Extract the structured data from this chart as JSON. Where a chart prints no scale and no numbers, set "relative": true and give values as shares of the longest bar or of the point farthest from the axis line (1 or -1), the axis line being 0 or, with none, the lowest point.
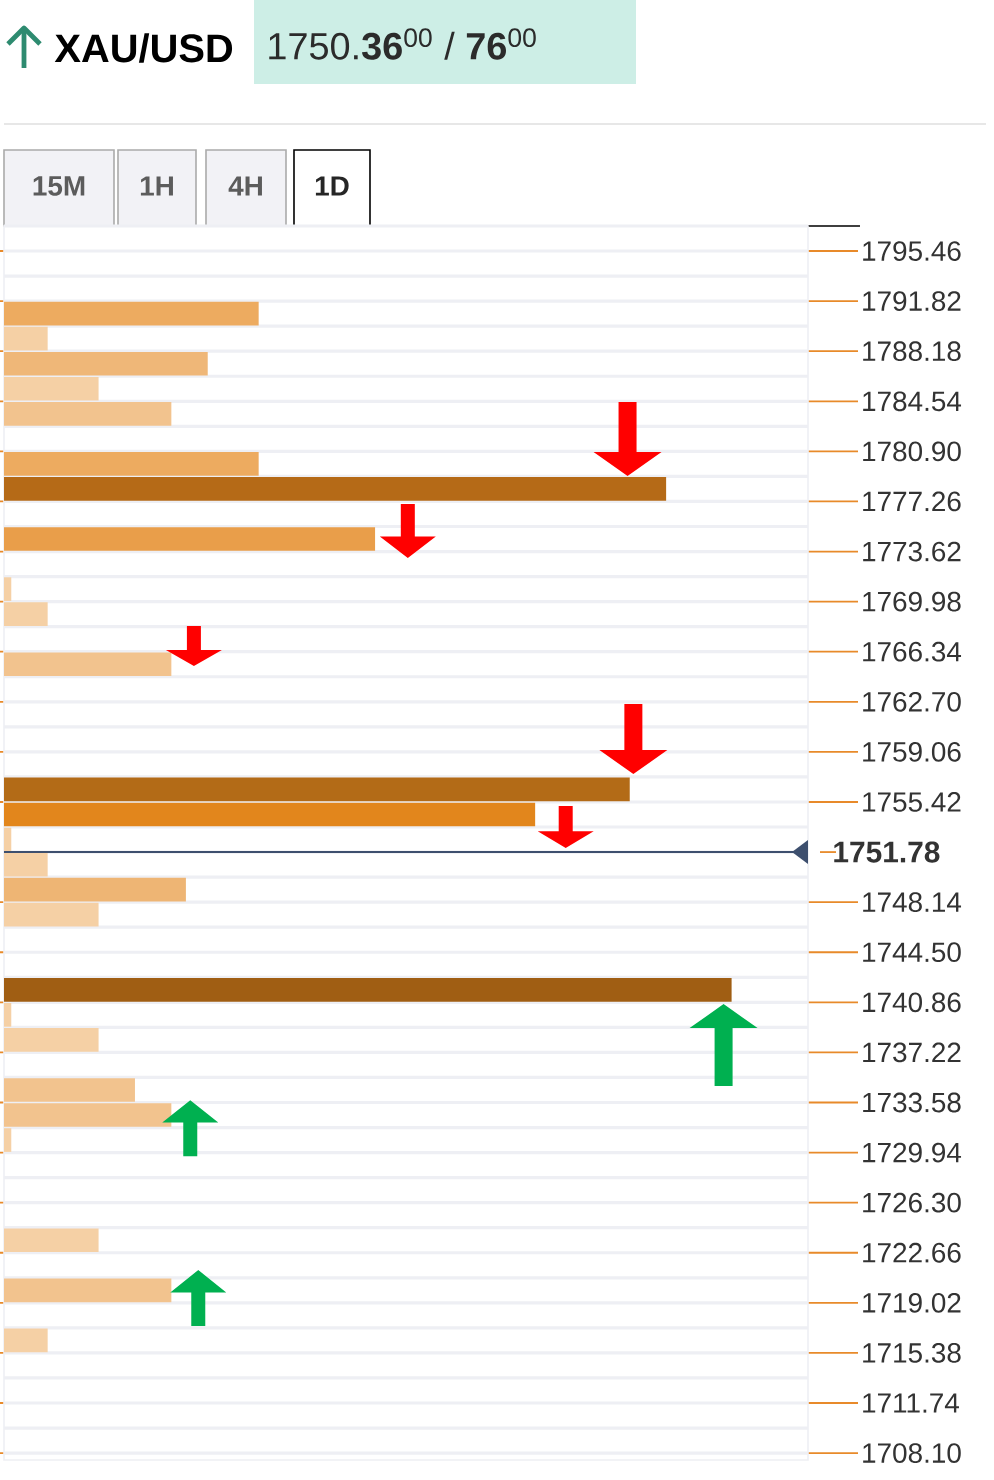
{
  "chart_data": {
    "type": "bar",
    "orientation": "horizontal",
    "relative": true,
    "title": "XAU/USD",
    "subtitle": "1750.**36**$^{00}$ / **76**$^{00}$",
    "annotations": [
      "15M",
      "1H",
      "4H",
      "1D"
    ],
    "x": [
      1790.91,
      1789.09,
      1787.27,
      1785.45,
      1783.63,
      1779.99,
      1778.17,
      1774.53,
      1770.89,
      1769.07,
      1765.43,
      1756.33,
      1754.51,
      1752.69,
      1750.87,
      1749.05,
      1747.23,
      1741.77,
      1739.95,
      1738.13,
      1734.49,
      1732.67,
      1730.85,
      1723.57,
      1719.93,
      1716.29
    ],
    "values": [
      0.35,
      0.06,
      0.28,
      0.13,
      0.23,
      0.35,
      0.91,
      0.51,
      0.01,
      0.06,
      0.23,
      0.86,
      0.73,
      0.01,
      0.06,
      0.25,
      0.13,
      1,
      0.01,
      0.13,
      0.18,
      0.23,
      0.01,
      0.13,
      0.23,
      0.06
    ],
    "colors": [
      "#edab60",
      "#f5d0a5",
      "#efb778",
      "#f5d0a5",
      "#f2c38e",
      "#edab60",
      "#b56a17",
      "#e99e4a",
      "#f5d0a5",
      "#f5d0a5",
      "#f2c38e",
      "#b36b17",
      "#e2861c",
      "#f5d0a5",
      "#f5d0a5",
      "#eeb574",
      "#f5d0a5",
      "#a05e13",
      "#f5d0a5",
      "#f5d0a5",
      "#f2c38e",
      "#f2c38e",
      "#f5d0a5",
      "#f5d0a5",
      "#f2c38e",
      "#f5d0a5"
    ],
    "ylim": [
      1707.6,
      1797.28
    ],
    "yticks": [
      1795.46,
      1791.82,
      1788.18,
      1784.54,
      {
        "value": 1780.9,
        "label": "1780.90"
      },
      1777.26,
      1773.62,
      1769.98,
      1766.34,
      {
        "value": 1762.7,
        "label": "1762.70"
      },
      1759.06,
      1755.42,
      1748.14,
      {
        "value": 1744.5,
        "label": "1744.50"
      },
      1740.86,
      1737.22,
      1733.58,
      1729.94,
      {
        "value": 1726.3,
        "label": "1726.30"
      },
      1722.66,
      1719.02,
      1715.38,
      1711.74,
      {
        "value": 1708.1,
        "label": "1708.10"
      }
    ],
    "ref_lines": [
      {
        "axis": "y",
        "value": 1751.78,
        "label": "1751.78",
        "color": "#3d4f6e"
      }
    ],
    "grid": "y"
  }
}
